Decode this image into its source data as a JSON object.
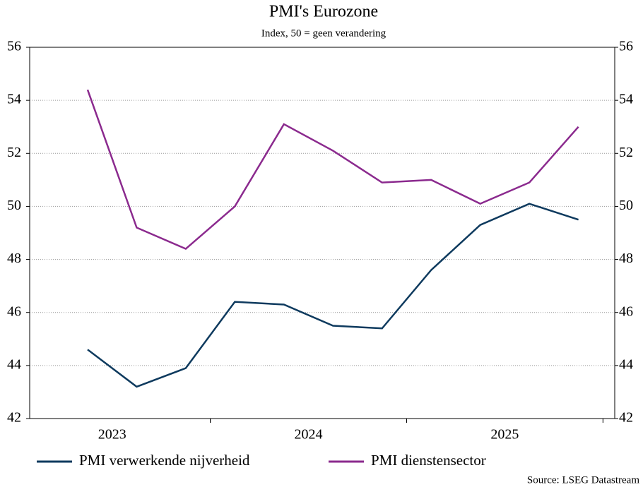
{
  "chart_data": {
    "type": "line",
    "title": "PMI's Eurozone",
    "subtitle": "Index, 50 = geen verandering",
    "source": "Source: LSEG Datastream",
    "x": [
      2023.375,
      2023.625,
      2023.875,
      2024.125,
      2024.375,
      2024.625,
      2024.875,
      2025.125,
      2025.375,
      2025.625,
      2025.875
    ],
    "xlim": [
      2023.08,
      2026.06
    ],
    "xticks": [
      {
        "value": 2023.5,
        "label": "2023"
      },
      {
        "value": 2024.5,
        "label": "2024"
      },
      {
        "value": 2025.5,
        "label": "2025"
      }
    ],
    "ylim": [
      42,
      56
    ],
    "yticks": [
      42,
      44,
      46,
      48,
      50,
      52,
      54,
      56
    ],
    "y2lim": [
      42,
      56
    ],
    "y2ticks": [
      42,
      44,
      46,
      48,
      50,
      52,
      54,
      56
    ],
    "grid": true,
    "legend": "bottom",
    "series": [
      {
        "name": "PMI verwerkende nijverheid",
        "color": "#0e3a5e",
        "values": [
          44.6,
          43.2,
          43.9,
          46.4,
          46.3,
          45.5,
          45.4,
          47.6,
          49.3,
          50.1,
          49.5
        ]
      },
      {
        "name": "PMI dienstensector",
        "color": "#8b2a8e",
        "values": [
          54.4,
          49.2,
          48.4,
          50.0,
          53.1,
          52.1,
          50.9,
          51.0,
          50.1,
          50.9,
          53.0
        ]
      }
    ]
  }
}
